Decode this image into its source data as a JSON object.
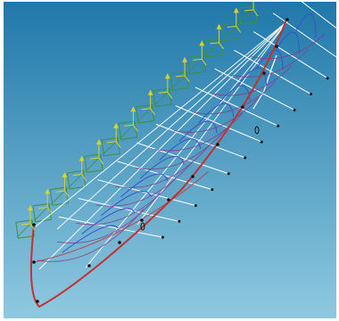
{
  "viewport": {
    "background_top": "#1f78a9",
    "background_bottom": "#8fc9e0"
  },
  "colors": {
    "keel_profile": "#c4312f",
    "waterline": "#ffffff",
    "section_curve": "#3a4fd0",
    "diagonal": "#8a3a8f",
    "coordinate_triad": "#d8d22e",
    "section_plane": "#3f8f3f",
    "control_point": "#111111"
  },
  "icons": [
    "coordinate-axis-icon",
    "section-plane-icon",
    "control-point-marker"
  ]
}
